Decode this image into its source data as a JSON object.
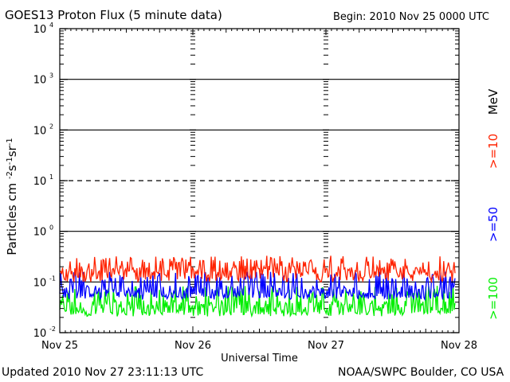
{
  "header": {
    "title": "GOES13 Proton Flux (5 minute data)",
    "begin": "Begin: 2010 Nov 25 0000 UTC"
  },
  "footer": {
    "updated": "Updated 2010 Nov 27 23:11:13 UTC",
    "source": "NOAA/SWPC Boulder, CO USA"
  },
  "colors": {
    "ge10": "#ff2200",
    "ge50": "#0000ff",
    "ge100": "#00ee00",
    "axis": "#000000"
  },
  "chart_data": {
    "type": "line",
    "title": "GOES13 Proton Flux (5 minute data)",
    "xlabel": "Universal Time",
    "ylabel_base": "Particles cm",
    "ylabel_parts": [
      "-2",
      "s",
      "-1",
      "sr",
      "-1"
    ],
    "y_scale": "log",
    "ylim": [
      0.01,
      10000
    ],
    "y_ticks": [
      {
        "base": "10",
        "exp": "-2",
        "value": 0.01
      },
      {
        "base": "10",
        "exp": "-1",
        "value": 0.1
      },
      {
        "base": "10",
        "exp": "0",
        "value": 1
      },
      {
        "base": "10",
        "exp": "1",
        "value": 10
      },
      {
        "base": "10",
        "exp": "2",
        "value": 100
      },
      {
        "base": "10",
        "exp": "3",
        "value": 1000
      },
      {
        "base": "10",
        "exp": "4",
        "value": 10000
      }
    ],
    "x_ticks": [
      "Nov 25",
      "Nov 26",
      "Nov 27",
      "Nov 28"
    ],
    "xlim_days": [
      0,
      3
    ],
    "data_end_day": 2.97,
    "thresholds": [
      {
        "value": 0.1,
        "style": "solid"
      },
      {
        "value": 1,
        "style": "solid"
      },
      {
        "value": 10,
        "style": "dashed"
      },
      {
        "value": 100,
        "style": "solid"
      },
      {
        "value": 1000,
        "style": "solid"
      }
    ],
    "legend": {
      "unit": "MeV",
      "placement": "right",
      "entries": [
        ">=10",
        ">=50",
        ">=100"
      ]
    },
    "series": [
      {
        "name": ">=10",
        "color": "#ff2200",
        "base": 0.16,
        "low": 0.1,
        "high": 0.33
      },
      {
        "name": ">=50",
        "color": "#0000ff",
        "base": 0.065,
        "low": 0.045,
        "high": 0.16
      },
      {
        "name": ">=100",
        "color": "#00ee00",
        "base": 0.032,
        "low": 0.021,
        "high": 0.085
      }
    ]
  }
}
